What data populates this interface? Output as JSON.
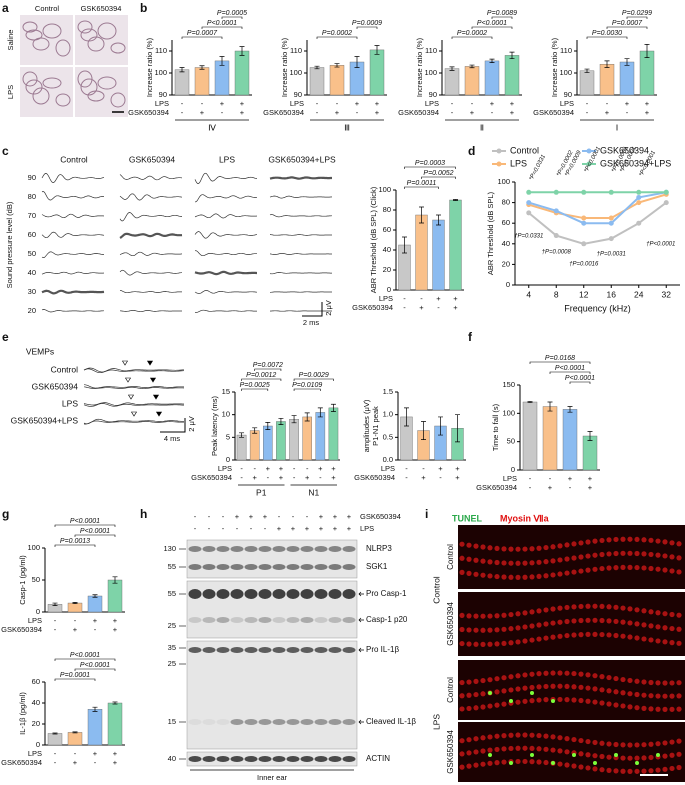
{
  "panel_labels": [
    "a",
    "b",
    "c",
    "d",
    "e",
    "f",
    "g",
    "h",
    "i"
  ],
  "panel_a": {
    "columns": [
      "Control",
      "GSK650394"
    ],
    "rows": [
      "Saline",
      "LPS"
    ]
  },
  "panel_c_traces": {
    "columns": [
      "Control",
      "GSK650394",
      "LPS",
      "GSK650394+LPS"
    ],
    "ylabel": "Sound pressure level (dB)",
    "levels": [
      90,
      80,
      70,
      60,
      50,
      40,
      30,
      20
    ],
    "time_scale": "2 ms",
    "amp_scale": "2 μV"
  },
  "panel_e_traces": {
    "title": "VEMPs",
    "rows": [
      "Control",
      "GSK650394",
      "LPS",
      "GSK650394+LPS"
    ],
    "time_scale": "4 ms",
    "amp_scale": "2 μV"
  },
  "panel_h": {
    "row_labels": [
      "GSK650394",
      "LPS"
    ],
    "lanes": [
      [
        "-",
        "-",
        "-",
        "+",
        "+",
        "+",
        "-",
        "-",
        "-",
        "+",
        "+",
        "+"
      ],
      [
        "-",
        "-",
        "-",
        "-",
        "-",
        "-",
        "+",
        "+",
        "+",
        "+",
        "+",
        "+"
      ]
    ],
    "markers": [
      130,
      55,
      55,
      25,
      35,
      25,
      15,
      40
    ],
    "bands": [
      "NLRP3",
      "SGK1",
      "Pro Casp-1",
      "Casp-1 p20",
      "Pro IL-1β",
      "Cleaved IL-1β",
      "ACTIN"
    ],
    "footer": "Inner ear"
  },
  "panel_i": {
    "stains": [
      "TUNEL",
      "Myosin Ⅶa"
    ],
    "groups": [
      "Control",
      "LPS"
    ],
    "rows": [
      "Control",
      "GSK650394",
      "Control",
      "GSK650394"
    ]
  },
  "chart_data": [
    {
      "type": "bar",
      "ylabel": "Increase ratio (%)",
      "ylim": [
        90,
        115
      ],
      "yticks": [
        90,
        100,
        110
      ],
      "values": [
        101.5,
        102.5,
        105.5,
        110
      ],
      "errors": [
        1,
        0.8,
        2,
        2
      ],
      "colors": [
        "#c8c8c8",
        "#f9c08a",
        "#8bbbf0",
        "#7ed3a8"
      ],
      "row_labels": [
        "LPS",
        "GSK650394"
      ],
      "rows": [
        [
          "-",
          "-",
          "+",
          "+"
        ],
        [
          "-",
          "+",
          "-",
          "+"
        ]
      ],
      "groups": [
        "Ⅳ"
      ],
      "pvalues": [
        {
          "label": "P=0.0007",
          "from": 0,
          "to": 2
        },
        {
          "label": "P<0.0001",
          "from": 1,
          "to": 3
        },
        {
          "label": "P=0.0005",
          "from": 2,
          "to": 3
        }
      ]
    },
    {
      "type": "bar",
      "ylabel": "Increase ratio (%)",
      "ylim": [
        90,
        115
      ],
      "yticks": [
        90,
        100,
        110
      ],
      "values": [
        102.5,
        103.5,
        105,
        110.5
      ],
      "errors": [
        0.6,
        0.8,
        2.5,
        2
      ],
      "colors": [
        "#c8c8c8",
        "#f9c08a",
        "#8bbbf0",
        "#7ed3a8"
      ],
      "row_labels": [
        "LPS",
        "GSK650394"
      ],
      "rows": [
        [
          "-",
          "-",
          "+",
          "+"
        ],
        [
          "-",
          "+",
          "-",
          "+"
        ]
      ],
      "groups": [
        "Ⅲ"
      ],
      "pvalues": [
        {
          "label": "P=0.0002",
          "from": 0,
          "to": 2
        },
        {
          "label": "P=0.0009",
          "from": 2,
          "to": 3
        }
      ]
    },
    {
      "type": "bar",
      "ylabel": "Increase ratio (%)",
      "ylim": [
        90,
        115
      ],
      "yticks": [
        90,
        100,
        110
      ],
      "values": [
        102,
        103,
        105.5,
        108
      ],
      "errors": [
        0.8,
        0.6,
        0.8,
        1.5
      ],
      "colors": [
        "#c8c8c8",
        "#f9c08a",
        "#8bbbf0",
        "#7ed3a8"
      ],
      "row_labels": [
        "LPS",
        "GSK650394"
      ],
      "rows": [
        [
          "-",
          "-",
          "+",
          "+"
        ],
        [
          "-",
          "+",
          "-",
          "+"
        ]
      ],
      "groups": [
        "Ⅱ"
      ],
      "pvalues": [
        {
          "label": "P=0.0002",
          "from": 0,
          "to": 2
        },
        {
          "label": "P<0.0001",
          "from": 1,
          "to": 3
        },
        {
          "label": "P=0.0089",
          "from": 2,
          "to": 3
        }
      ]
    },
    {
      "type": "bar",
      "ylabel": "Increase ratio (%)",
      "ylim": [
        90,
        115
      ],
      "yticks": [
        90,
        100,
        110
      ],
      "values": [
        101,
        104,
        105,
        110
      ],
      "errors": [
        0.8,
        1.5,
        1.5,
        3
      ],
      "colors": [
        "#c8c8c8",
        "#f9c08a",
        "#8bbbf0",
        "#7ed3a8"
      ],
      "row_labels": [
        "LPS",
        "GSK650394"
      ],
      "rows": [
        [
          "-",
          "-",
          "+",
          "+"
        ],
        [
          "-",
          "+",
          "-",
          "+"
        ]
      ],
      "groups": [
        "Ⅰ"
      ],
      "pvalues": [
        {
          "label": "P=0.0030",
          "from": 0,
          "to": 2
        },
        {
          "label": "P=0.0007",
          "from": 1,
          "to": 3
        },
        {
          "label": "P=0.0299",
          "from": 2,
          "to": 3
        }
      ]
    },
    {
      "type": "bar",
      "ylabel": "ABR Threshold (dB SPL) (Click)",
      "ylim": [
        0,
        100
      ],
      "yticks": [
        0,
        20,
        40,
        60,
        80,
        100
      ],
      "values": [
        45,
        75,
        70,
        90
      ],
      "errors": [
        8,
        8,
        5,
        0.5
      ],
      "colors": [
        "#c8c8c8",
        "#f9c08a",
        "#8bbbf0",
        "#7ed3a8"
      ],
      "row_labels": [
        "LPS",
        "GSK650394"
      ],
      "rows": [
        [
          "-",
          "-",
          "+",
          "+"
        ],
        [
          "-",
          "+",
          "-",
          "+"
        ]
      ],
      "pvalues": [
        {
          "label": "P=0.0011",
          "from": 0,
          "to": 2
        },
        {
          "label": "P=0.0052",
          "from": 1,
          "to": 3
        },
        {
          "label": "P=0.0003",
          "from": 0,
          "to": 3
        }
      ]
    },
    {
      "type": "line",
      "ylabel": "ABR Threshold (dB SPL)",
      "xlabel": "Frequency (kHz)",
      "categories": [
        "4",
        "8",
        "12",
        "16",
        "24",
        "32"
      ],
      "ylim": [
        0,
        100
      ],
      "yticks": [
        0,
        20,
        40,
        60,
        80,
        100
      ],
      "series": [
        {
          "name": "Control",
          "color": "#c0c0c0",
          "values": [
            70,
            48,
            40,
            45,
            60,
            80
          ]
        },
        {
          "name": "LPS",
          "color": "#f9b878",
          "values": [
            78,
            70,
            65,
            65,
            80,
            88
          ]
        },
        {
          "name": "GSK650394",
          "color": "#8bbbf0",
          "values": [
            80,
            72,
            60,
            60,
            85,
            90
          ]
        },
        {
          "name": "GSK650394+LPS",
          "color": "#7ed3a8",
          "values": [
            90,
            90,
            90,
            90,
            90,
            90
          ]
        }
      ],
      "annotations": [
        "*P=0.0331",
        "*P=0.0002",
        "*P=0.0009",
        "*P<0.0001",
        "*P<0.0001",
        "*P=0.0001",
        "*P<0.0001",
        "†P=0.0331",
        "†P=0.0008",
        "†P=0.0016",
        "†P=0.0031",
        "†P<0.0001"
      ]
    },
    {
      "type": "bar",
      "ylabel": "Peak latency (ms)",
      "ylim": [
        0,
        15
      ],
      "yticks": [
        0,
        5,
        10,
        15
      ],
      "values": [
        5.5,
        6.5,
        7.5,
        8.5,
        9,
        9.5,
        10.5,
        11.5
      ],
      "errors": [
        0.5,
        0.6,
        0.8,
        0.7,
        0.8,
        0.9,
        1,
        0.8
      ],
      "colors": [
        "#c8c8c8",
        "#f9c08a",
        "#8bbbf0",
        "#7ed3a8",
        "#c8c8c8",
        "#f9c08a",
        "#8bbbf0",
        "#7ed3a8"
      ],
      "row_labels": [
        "LPS",
        "GSK650394"
      ],
      "rows": [
        [
          "-",
          "-",
          "+",
          "+",
          "-",
          "-",
          "+",
          "+"
        ],
        [
          "-",
          "+",
          "-",
          "+",
          "-",
          "+",
          "-",
          "+"
        ]
      ],
      "groups": [
        "P1",
        "N1"
      ],
      "pvalues": [
        {
          "label": "P=0.0025",
          "from": 0,
          "to": 2
        },
        {
          "label": "P=0.0012",
          "from": 0,
          "to": 3
        },
        {
          "label": "P=0.0072",
          "from": 1,
          "to": 3
        },
        {
          "label": "P=0.0109",
          "from": 4,
          "to": 6
        },
        {
          "label": "P=0.0029",
          "from": 4,
          "to": 7
        }
      ]
    },
    {
      "type": "bar",
      "ylabel": [
        "P1-N1 peak",
        "amplitudes (μV)"
      ],
      "ylim": [
        0,
        1.5
      ],
      "yticks": [
        {
          "value": 0,
          "label": "0.0"
        },
        {
          "value": 0.5,
          "label": "0.5"
        },
        {
          "value": 1,
          "label": "1.0"
        },
        {
          "value": 1.5,
          "label": "1.5"
        }
      ],
      "values": [
        0.95,
        0.65,
        0.75,
        0.7
      ],
      "errors": [
        0.2,
        0.2,
        0.2,
        0.3
      ],
      "colors": [
        "#c8c8c8",
        "#f9c08a",
        "#8bbbf0",
        "#7ed3a8"
      ],
      "row_labels": [
        "LPS",
        "GSK650394"
      ],
      "rows": [
        [
          "-",
          "-",
          "+",
          "+"
        ],
        [
          "-",
          "+",
          "-",
          "+"
        ]
      ]
    },
    {
      "type": "bar",
      "ylabel": "Time to fall (s)",
      "ylim": [
        0,
        150
      ],
      "yticks": [
        0,
        50,
        100,
        150
      ],
      "values": [
        120,
        112,
        107,
        60
      ],
      "errors": [
        1,
        8,
        5,
        8
      ],
      "colors": [
        "#c8c8c8",
        "#f9c08a",
        "#8bbbf0",
        "#7ed3a8"
      ],
      "row_labels": [
        "LPS",
        "GSK650394"
      ],
      "rows": [
        [
          "-",
          "-",
          "+",
          "+"
        ],
        [
          "-",
          "+",
          "-",
          "+"
        ]
      ],
      "pvalues": [
        {
          "label": "P<0.0001",
          "from": 2,
          "to": 3
        },
        {
          "label": "P<0.0001",
          "from": 1,
          "to": 3
        },
        {
          "label": "P=0.0168",
          "from": 0,
          "to": 3
        }
      ]
    },
    {
      "type": "bar",
      "ylabel": "Casp-1 (pg/ml)",
      "ylim": [
        0,
        100
      ],
      "yticks": [
        0,
        50,
        100
      ],
      "values": [
        12,
        14,
        25,
        50
      ],
      "errors": [
        2,
        1,
        2,
        5
      ],
      "colors": [
        "#c8c8c8",
        "#f9c08a",
        "#8bbbf0",
        "#7ed3a8"
      ],
      "row_labels": [
        "LPS",
        "GSK650394"
      ],
      "rows": [
        [
          "-",
          "-",
          "+",
          "+"
        ],
        [
          "-",
          "+",
          "-",
          "+"
        ]
      ],
      "pvalues": [
        {
          "label": "P=0.0013",
          "from": 0,
          "to": 2
        },
        {
          "label": "P<0.0001",
          "from": 1,
          "to": 3
        },
        {
          "label": "P<0.0001",
          "from": 0,
          "to": 3
        }
      ]
    },
    {
      "type": "bar",
      "ylabel": "IL-1β (pg/ml)",
      "ylim": [
        0,
        60
      ],
      "yticks": [
        0,
        20,
        40,
        60
      ],
      "values": [
        11,
        12,
        34,
        40
      ],
      "errors": [
        0.5,
        0.5,
        2,
        1
      ],
      "colors": [
        "#c8c8c8",
        "#f9c08a",
        "#8bbbf0",
        "#7ed3a8"
      ],
      "row_labels": [
        "LPS",
        "GSK650394"
      ],
      "rows": [
        [
          "-",
          "-",
          "+",
          "+"
        ],
        [
          "-",
          "+",
          "-",
          "+"
        ]
      ],
      "pvalues": [
        {
          "label": "P=0.0001",
          "from": 0,
          "to": 2
        },
        {
          "label": "P<0.0001",
          "from": 1,
          "to": 3
        },
        {
          "label": "P<0.0001",
          "from": 0,
          "to": 3
        }
      ]
    }
  ]
}
